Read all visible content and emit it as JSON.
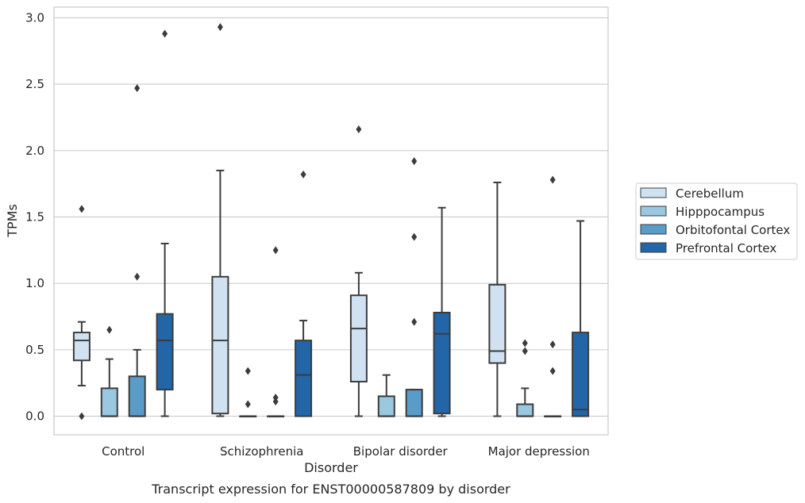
{
  "chart_data": {
    "type": "box",
    "caption": "Transcript expression for ENST00000587809 by disorder",
    "xlabel": "Disorder",
    "ylabel": "TPMs",
    "ylim": [
      -0.14,
      3.08
    ],
    "yticks": [
      "0.0",
      "0.5",
      "1.0",
      "1.5",
      "2.0",
      "2.5",
      "3.0"
    ],
    "grid": true,
    "legend_position": "right",
    "categories": [
      "Control",
      "Schizophrenia",
      "Bipolar disorder",
      "Major depression"
    ],
    "series": [
      {
        "name": "Cerebellum",
        "color": "#d0e2f2",
        "boxes": [
          {
            "q1": 0.42,
            "median": 0.57,
            "q3": 0.63,
            "whisker_low": 0.23,
            "whisker_high": 0.71,
            "outliers": [
              1.56,
              0.0
            ]
          },
          {
            "q1": 0.02,
            "median": 0.57,
            "q3": 1.05,
            "whisker_low": 0.0,
            "whisker_high": 1.85,
            "outliers": [
              2.93
            ]
          },
          {
            "q1": 0.26,
            "median": 0.66,
            "q3": 0.91,
            "whisker_low": 0.0,
            "whisker_high": 1.08,
            "outliers": [
              2.16
            ]
          },
          {
            "q1": 0.4,
            "median": 0.49,
            "q3": 0.99,
            "whisker_low": 0.0,
            "whisker_high": 1.76,
            "outliers": []
          }
        ]
      },
      {
        "name": "Hipppocampus",
        "color": "#9ac8e0",
        "boxes": [
          {
            "q1": 0.0,
            "median": 0.0,
            "q3": 0.21,
            "whisker_low": 0.0,
            "whisker_high": 0.43,
            "outliers": [
              0.65
            ]
          },
          {
            "q1": 0.0,
            "median": 0.0,
            "q3": 0.0,
            "whisker_low": 0.0,
            "whisker_high": 0.0,
            "outliers": [
              0.34,
              0.09
            ]
          },
          {
            "q1": 0.0,
            "median": 0.0,
            "q3": 0.15,
            "whisker_low": 0.0,
            "whisker_high": 0.31,
            "outliers": []
          },
          {
            "q1": 0.0,
            "median": 0.0,
            "q3": 0.09,
            "whisker_low": 0.0,
            "whisker_high": 0.21,
            "outliers": [
              0.55,
              0.49
            ]
          }
        ]
      },
      {
        "name": "Orbitofontal Cortex",
        "color": "#5a9cc9",
        "boxes": [
          {
            "q1": 0.0,
            "median": 0.0,
            "q3": 0.3,
            "whisker_low": 0.0,
            "whisker_high": 0.5,
            "outliers": [
              2.47,
              1.05
            ]
          },
          {
            "q1": 0.0,
            "median": 0.0,
            "q3": 0.0,
            "whisker_low": 0.0,
            "whisker_high": 0.0,
            "outliers": [
              1.25,
              0.14,
              0.11
            ]
          },
          {
            "q1": 0.0,
            "median": 0.0,
            "q3": 0.2,
            "whisker_low": 0.0,
            "whisker_high": 0.2,
            "outliers": [
              1.92,
              1.35,
              0.71
            ]
          },
          {
            "q1": 0.0,
            "median": 0.0,
            "q3": 0.0,
            "whisker_low": 0.0,
            "whisker_high": 0.0,
            "outliers": [
              1.78,
              0.54,
              0.34
            ]
          }
        ]
      },
      {
        "name": "Prefrontal Cortex",
        "color": "#2266a8",
        "boxes": [
          {
            "q1": 0.2,
            "median": 0.57,
            "q3": 0.77,
            "whisker_low": 0.0,
            "whisker_high": 1.3,
            "outliers": [
              2.88
            ]
          },
          {
            "q1": 0.0,
            "median": 0.31,
            "q3": 0.57,
            "whisker_low": 0.0,
            "whisker_high": 0.72,
            "outliers": [
              1.82
            ]
          },
          {
            "q1": 0.02,
            "median": 0.62,
            "q3": 0.78,
            "whisker_low": 0.0,
            "whisker_high": 1.57,
            "outliers": []
          },
          {
            "q1": 0.0,
            "median": 0.05,
            "q3": 0.63,
            "whisker_low": 0.0,
            "whisker_high": 1.47,
            "outliers": []
          }
        ]
      }
    ]
  }
}
